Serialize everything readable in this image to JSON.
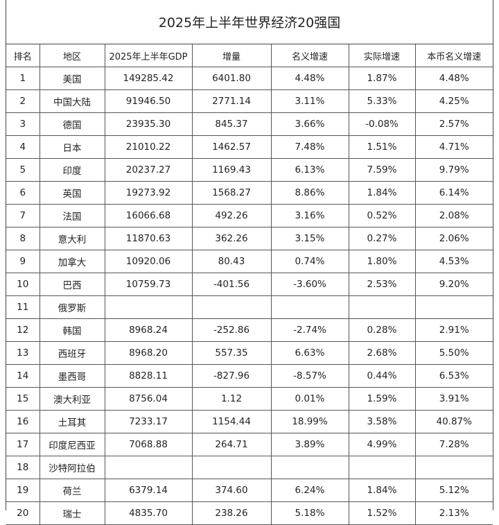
{
  "title": "2025年上半年世界经济20强国",
  "columns": [
    "排名",
    "地区",
    "2025年上半年GDP",
    "增量",
    "名义增速",
    "实际增速",
    "本币名义增速"
  ],
  "rows": [
    [
      "1",
      "美国",
      "149285.42",
      "6401.80",
      "4.48%",
      "1.87%",
      "4.48%"
    ],
    [
      "2",
      "中国大陆",
      "91946.50",
      "2771.14",
      "3.11%",
      "5.33%",
      "4.25%"
    ],
    [
      "3",
      "德国",
      "23935.30",
      "845.37",
      "3.66%",
      "-0.08%",
      "2.57%"
    ],
    [
      "4",
      "日本",
      "21010.22",
      "1462.57",
      "7.48%",
      "1.51%",
      "4.71%"
    ],
    [
      "5",
      "印度",
      "20237.27",
      "1169.43",
      "6.13%",
      "7.59%",
      "9.79%"
    ],
    [
      "6",
      "英国",
      "19273.92",
      "1568.27",
      "8.86%",
      "1.84%",
      "6.14%"
    ],
    [
      "7",
      "法国",
      "16066.68",
      "492.26",
      "3.16%",
      "0.52%",
      "2.08%"
    ],
    [
      "8",
      "意大利",
      "11870.63",
      "362.26",
      "3.15%",
      "0.27%",
      "2.06%"
    ],
    [
      "9",
      "加拿大",
      "10920.06",
      "80.43",
      "0.74%",
      "1.80%",
      "4.53%"
    ],
    [
      "10",
      "巴西",
      "10759.73",
      "-401.56",
      "-3.60%",
      "2.53%",
      "9.20%"
    ],
    [
      "11",
      "俄罗斯",
      "",
      "",
      "",
      "",
      ""
    ],
    [
      "12",
      "韩国",
      "8968.24",
      "-252.86",
      "-2.74%",
      "0.28%",
      "2.91%"
    ],
    [
      "13",
      "西班牙",
      "8968.20",
      "557.35",
      "6.63%",
      "2.68%",
      "5.50%"
    ],
    [
      "14",
      "墨西哥",
      "8828.11",
      "-827.96",
      "-8.57%",
      "0.44%",
      "6.53%"
    ],
    [
      "15",
      "澳大利亚",
      "8756.04",
      "1.12",
      "0.01%",
      "1.59%",
      "3.91%"
    ],
    [
      "16",
      "土耳其",
      "7233.17",
      "1154.44",
      "18.99%",
      "3.58%",
      "40.87%"
    ],
    [
      "17",
      "印度尼西亚",
      "7068.88",
      "264.71",
      "3.89%",
      "4.99%",
      "7.28%"
    ],
    [
      "18",
      "沙特阿拉伯",
      "",
      "",
      "",
      "",
      ""
    ],
    [
      "19",
      "荷兰",
      "6379.14",
      "374.60",
      "6.24%",
      "1.84%",
      "5.12%"
    ],
    [
      "20",
      "瑞士",
      "4835.70",
      "238.26",
      "5.18%",
      "1.52%",
      "2.13%"
    ]
  ]
}
